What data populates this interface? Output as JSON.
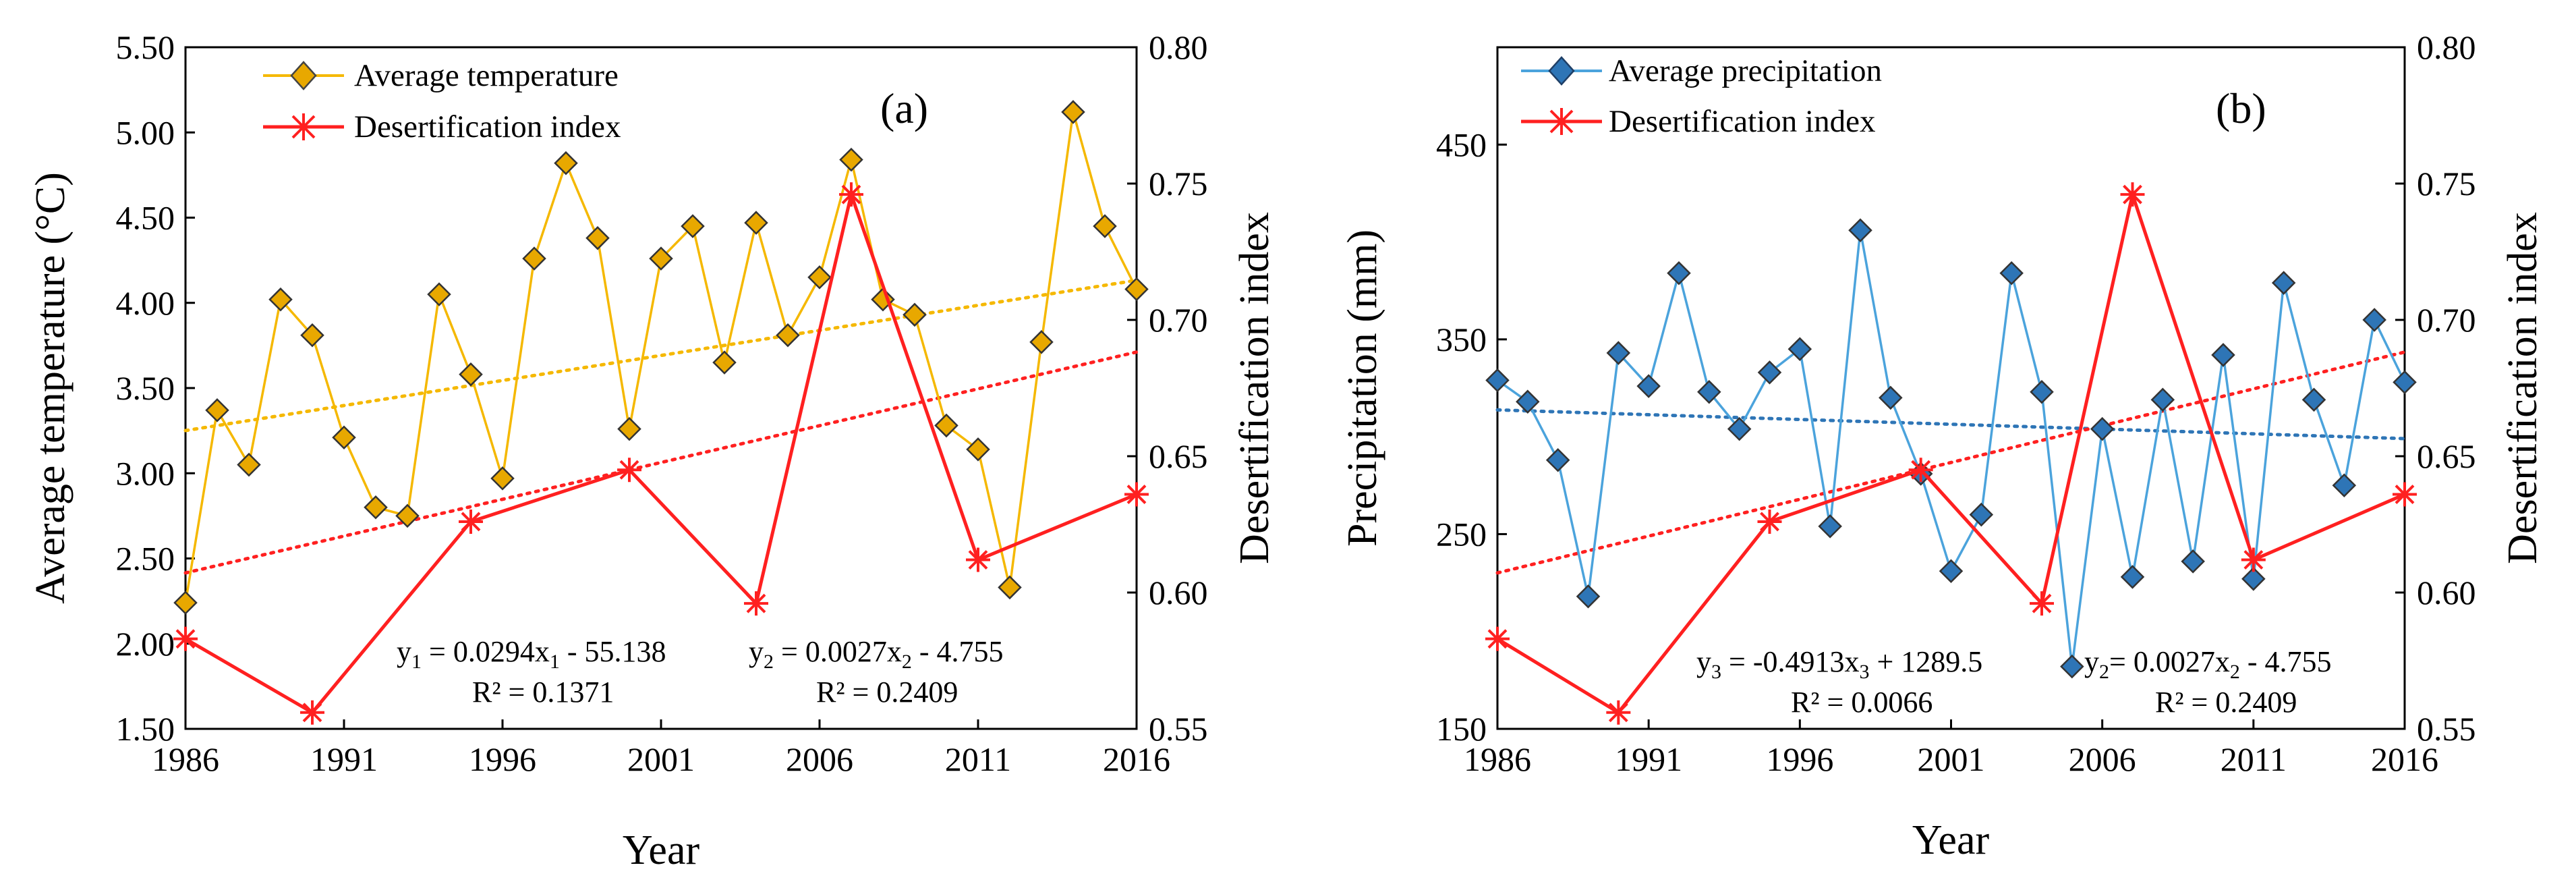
{
  "chart_data": [
    {
      "type": "line",
      "panel_label": "(a)",
      "xlabel": "Year",
      "ylabel": "Average temperature (°C)",
      "y2label": "Desertification index",
      "xlim": [
        1986,
        2016
      ],
      "ylim": [
        1.5,
        5.5
      ],
      "y2lim": [
        0.55,
        0.8
      ],
      "xticks": [
        "1986",
        "1991",
        "1996",
        "2001",
        "2006",
        "2011",
        "2016"
      ],
      "yticks": [
        "1.50",
        "2.00",
        "2.50",
        "3.00",
        "3.50",
        "4.00",
        "4.50",
        "5.00",
        "5.50"
      ],
      "y2ticks": [
        "0.55",
        "0.60",
        "0.65",
        "0.70",
        "0.75",
        "0.80"
      ],
      "grid": false,
      "legend_position": "top-left",
      "series": [
        {
          "name": "Average temperature",
          "axis": "left",
          "color": "#F5B800",
          "marker": "diamond",
          "marker_fill": "#E8A800",
          "x": [
            1986,
            1987,
            1988,
            1989,
            1990,
            1991,
            1992,
            1993,
            1994,
            1995,
            1996,
            1997,
            1998,
            1999,
            2000,
            2001,
            2002,
            2003,
            2004,
            2005,
            2006,
            2007,
            2008,
            2009,
            2010,
            2011,
            2012,
            2013,
            2014,
            2015,
            2016
          ],
          "values": [
            2.24,
            3.37,
            3.05,
            4.02,
            3.81,
            3.21,
            2.8,
            2.75,
            4.05,
            3.58,
            2.97,
            4.26,
            4.82,
            4.38,
            3.26,
            4.26,
            4.45,
            3.65,
            4.47,
            3.81,
            4.15,
            4.84,
            4.02,
            3.93,
            3.28,
            3.14,
            2.33,
            3.77,
            5.12,
            4.45,
            4.08
          ]
        },
        {
          "name": "Desertification index",
          "axis": "right",
          "color": "#FF2020",
          "marker": "asterisk",
          "x": [
            1986,
            1990,
            1995,
            2000,
            2004,
            2007,
            2011,
            2016
          ],
          "values": [
            0.583,
            0.556,
            0.626,
            0.645,
            0.596,
            0.746,
            0.612,
            0.636
          ]
        }
      ],
      "trendlines": [
        {
          "axis": "left",
          "color": "#F5B800",
          "slope": 0.0294,
          "intercept": -55.138
        },
        {
          "axis": "right",
          "color": "#FF2020",
          "slope": 0.0027,
          "intercept": -4.755
        }
      ],
      "annotations": {
        "eq1_prefix": "y",
        "eq1_sub1": "1",
        "eq1_mid": " = 0.0294x",
        "eq1_sub2": "1",
        "eq1_suffix": " - 55.138",
        "r2_1": "R² = 0.1371",
        "eq2_prefix": "y",
        "eq2_sub1": "2",
        "eq2_mid": " = 0.0027x",
        "eq2_sub2": "2",
        "eq2_suffix": " - 4.755",
        "r2_2": "R² = 0.2409"
      }
    },
    {
      "type": "line",
      "panel_label": "(b)",
      "xlabel": "Year",
      "ylabel": "Precipitation (mm)",
      "y2label": "Desertification index",
      "xlim": [
        1986,
        2016
      ],
      "ylim": [
        150,
        500
      ],
      "y2lim": [
        0.55,
        0.8
      ],
      "xticks": [
        "1986",
        "1991",
        "1996",
        "2001",
        "2006",
        "2011",
        "2016"
      ],
      "yticks": [
        "150",
        "250",
        "350",
        "450"
      ],
      "y2ticks": [
        "0.55",
        "0.60",
        "0.65",
        "0.70",
        "0.75",
        "0.80"
      ],
      "grid": false,
      "legend_position": "top-left",
      "series": [
        {
          "name": "Average precipitation",
          "axis": "left",
          "color": "#4BA3DC",
          "marker": "diamond",
          "marker_fill": "#2E75B6",
          "x": [
            1986,
            1987,
            1988,
            1989,
            1990,
            1991,
            1992,
            1993,
            1994,
            1995,
            1996,
            1997,
            1998,
            1999,
            2000,
            2001,
            2002,
            2003,
            2004,
            2005,
            2006,
            2007,
            2008,
            2009,
            2010,
            2011,
            2012,
            2013,
            2014,
            2015,
            2016
          ],
          "values": [
            329,
            318,
            288,
            218,
            343,
            326,
            384,
            323,
            304,
            333,
            345,
            254,
            406,
            320,
            281,
            231,
            260,
            384,
            323,
            182,
            304,
            228,
            319,
            236,
            342,
            227,
            379,
            319,
            275,
            360,
            328
          ]
        },
        {
          "name": "Desertification index",
          "axis": "right",
          "color": "#FF2020",
          "marker": "asterisk",
          "x": [
            1986,
            1990,
            1995,
            2000,
            2004,
            2007,
            2011,
            2016
          ],
          "values": [
            0.583,
            0.556,
            0.626,
            0.645,
            0.596,
            0.746,
            0.612,
            0.636
          ]
        }
      ],
      "trendlines": [
        {
          "axis": "left",
          "color": "#2E75B6",
          "slope": -0.4913,
          "intercept": 1289.5
        },
        {
          "axis": "right",
          "color": "#FF2020",
          "slope": 0.0027,
          "intercept": -4.755
        }
      ],
      "annotations": {
        "eq1_prefix": "y",
        "eq1_sub1": "3",
        "eq1_mid": " = -0.4913x",
        "eq1_sub2": "3",
        "eq1_suffix": " + 1289.5",
        "r2_1": "R² = 0.0066",
        "eq2_prefix": "y",
        "eq2_sub1": "2",
        "eq2_mid": "= 0.0027x",
        "eq2_sub2": "2",
        "eq2_suffix": " - 4.755",
        "r2_2": "R² = 0.2409"
      }
    }
  ]
}
